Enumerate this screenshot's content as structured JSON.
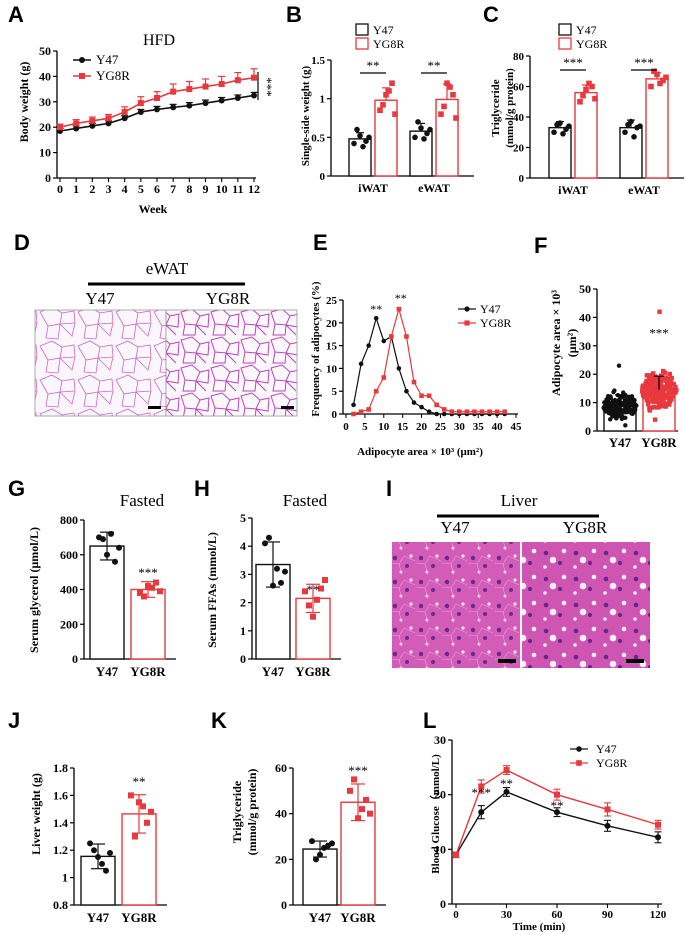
{
  "colors": {
    "y47": "#111111",
    "yg8r": "#e8393e",
    "he_pink": "#d06ad0",
    "he_bg": "#c54fb4"
  },
  "panels": {
    "A": {
      "letter": "A",
      "title": "HFD",
      "ylabel": "Body weight (g)",
      "xlabel": "Week",
      "legend": [
        "Y47",
        "YG8R"
      ],
      "sig": "***"
    },
    "B": {
      "letter": "B",
      "ylabel": "Single-side weight (g)",
      "legend": [
        "Y47",
        "YG8R"
      ],
      "sig": [
        "**",
        "**"
      ]
    },
    "C": {
      "letter": "C",
      "ylabel_line1": "Triglyceride",
      "ylabel_line2": "(mmol/g protein)",
      "legend": [
        "Y47",
        "YG8R"
      ],
      "sig": [
        "***",
        "***"
      ]
    },
    "D": {
      "letter": "D",
      "header": "eWAT",
      "left": "Y47",
      "right": "YG8R"
    },
    "E": {
      "letter": "E",
      "ylabel": "Frequency of adipocytes (%)",
      "xlabel": "Adipocyte area × 10³ (μm²)",
      "legend": [
        "Y47",
        "YG8R"
      ],
      "sig": [
        "**",
        "**"
      ]
    },
    "F": {
      "letter": "F",
      "ylabel_line1": "Adipocyte area × 10³",
      "ylabel_line2": "(μm²)",
      "sig": "***"
    },
    "G": {
      "letter": "G",
      "title": "Fasted",
      "ylabel": "Serum glycerol (μmol/L)",
      "sig": "***"
    },
    "H": {
      "letter": "H",
      "title": "Fasted",
      "ylabel": "Serum FFAs (mmol/L)",
      "sig": "**"
    },
    "I": {
      "letter": "I",
      "header": "Liver",
      "left": "Y47",
      "right": "YG8R"
    },
    "J": {
      "letter": "J",
      "ylabel": "Liver weight (g)",
      "sig": "**"
    },
    "K": {
      "letter": "K",
      "ylabel_line1": "Triglyceride",
      "ylabel_line2": "(mmol/g protein)",
      "sig": "***"
    },
    "L": {
      "letter": "L",
      "ylabel": "Blood Glucose（mmol/L)",
      "xlabel": "Time (min)",
      "legend": [
        "Y47",
        "YG8R"
      ],
      "sig": [
        "***",
        "**",
        "**"
      ]
    }
  },
  "chart_data": [
    {
      "id": "A",
      "type": "line",
      "title": "HFD",
      "xlabel": "Week",
      "ylabel": "Body weight (g)",
      "xlim": [
        0,
        12
      ],
      "ylim": [
        0,
        50
      ],
      "x": [
        0,
        1,
        2,
        3,
        4,
        5,
        6,
        7,
        8,
        9,
        10,
        11,
        12
      ],
      "xticks": [
        0,
        1,
        2,
        3,
        4,
        5,
        6,
        7,
        8,
        9,
        10,
        11,
        12
      ],
      "yticks": [
        0,
        10,
        20,
        30,
        40,
        50
      ],
      "series": [
        {
          "name": "Y47",
          "values": [
            18.5,
            19.5,
            20.5,
            21.5,
            23.5,
            26,
            27,
            27.8,
            28.5,
            29.5,
            30.5,
            31.5,
            32.5
          ],
          "err": [
            1,
            1,
            1,
            1,
            1,
            1,
            1.2,
            1.2,
            1.2,
            1.2,
            1.2,
            1.2,
            1.2
          ]
        },
        {
          "name": "YG8R",
          "values": [
            20,
            21.5,
            22.5,
            23.5,
            26,
            29.5,
            31.5,
            34,
            35,
            36,
            37,
            38.5,
            39.5
          ],
          "err": [
            1.2,
            1.5,
            1.5,
            1.5,
            2,
            2.5,
            2.5,
            3,
            3,
            3,
            3,
            3,
            3.5
          ]
        }
      ]
    },
    {
      "id": "B",
      "type": "bar",
      "ylabel": "Single-side weight (g)",
      "categories": [
        "iWAT",
        "eWAT"
      ],
      "ylim": [
        0,
        1.5
      ],
      "yticks": [
        0,
        0.5,
        1.0,
        1.5
      ],
      "series": [
        {
          "name": "Y47",
          "values": [
            0.48,
            0.58
          ],
          "err": [
            0.08,
            0.1
          ],
          "points": [
            [
              0.42,
              0.52,
              0.45,
              0.6,
              0.38,
              0.5
            ],
            [
              0.5,
              0.62,
              0.55,
              0.7,
              0.48,
              0.6
            ]
          ]
        },
        {
          "name": "YG8R",
          "values": [
            0.98,
            0.99
          ],
          "err": [
            0.16,
            0.2
          ],
          "points": [
            [
              0.85,
              1.05,
              1.2,
              0.92,
              1.1,
              0.8
            ],
            [
              0.8,
              1.2,
              1.05,
              0.9,
              1.15,
              0.75
            ]
          ]
        }
      ]
    },
    {
      "id": "C",
      "type": "bar",
      "ylabel": "Triglyceride (mmol/g protein)",
      "categories": [
        "iWAT",
        "eWAT"
      ],
      "ylim": [
        0,
        80
      ],
      "yticks": [
        0,
        20,
        40,
        60,
        80
      ],
      "series": [
        {
          "name": "Y47",
          "values": [
            33,
            33
          ],
          "err": [
            4,
            5
          ],
          "points": [
            [
              30,
              36,
              32,
              35,
              29,
              34
            ],
            [
              30,
              37,
              33,
              35,
              27,
              34
            ]
          ]
        },
        {
          "name": "YG8R",
          "values": [
            56,
            65
          ],
          "err": [
            5,
            4
          ],
          "points": [
            [
              50,
              58,
              60,
              54,
              62,
              52
            ],
            [
              60,
              68,
              64,
              70,
              62,
              66
            ]
          ]
        }
      ]
    },
    {
      "id": "E",
      "type": "line",
      "ylabel": "Frequency of adipocytes (%)",
      "xlabel": "Adipocyte area × 10³ (μm²)",
      "xlim": [
        0,
        45
      ],
      "ylim": [
        0,
        25
      ],
      "xticks": [
        0,
        5,
        10,
        15,
        20,
        25,
        30,
        35,
        40,
        45
      ],
      "yticks": [
        0,
        5,
        10,
        15,
        20,
        25
      ],
      "series": [
        {
          "name": "Y47",
          "x": [
            2,
            4,
            6,
            8,
            10,
            12,
            14,
            16,
            18,
            20,
            22,
            24,
            26,
            28,
            30,
            32,
            34,
            36,
            38,
            40,
            42
          ],
          "values": [
            2,
            11,
            15,
            21,
            16,
            17,
            10,
            5,
            2.5,
            1.5,
            0.5,
            0,
            0,
            0,
            0,
            0,
            0,
            0,
            0,
            0,
            0
          ]
        },
        {
          "name": "YG8R",
          "x": [
            2,
            4,
            6,
            8,
            10,
            12,
            14,
            16,
            18,
            20,
            22,
            24,
            26,
            28,
            30,
            32,
            34,
            36,
            38,
            40,
            42
          ],
          "values": [
            0,
            0.5,
            1,
            5,
            8,
            17,
            23,
            17,
            7,
            4,
            4,
            2,
            1,
            0.5,
            0.5,
            0.5,
            0.5,
            0.5,
            0.5,
            0.5,
            0.5
          ]
        }
      ]
    },
    {
      "id": "F",
      "type": "scatter",
      "ylabel": "Adipocyte area × 10³ (μm²)",
      "categories": [
        "Y47",
        "YG8R"
      ],
      "ylim": [
        0,
        50
      ],
      "yticks": [
        0,
        10,
        20,
        30,
        40,
        50
      ],
      "series": [
        {
          "name": "Y47",
          "mean": 9.2,
          "sd": 3.5,
          "min": 2,
          "max": 23,
          "n": 160
        },
        {
          "name": "YG8R",
          "mean": 14.5,
          "sd": 4.8,
          "min": 4,
          "max": 42,
          "n": 160
        }
      ]
    },
    {
      "id": "G",
      "type": "bar",
      "title": "Fasted",
      "ylabel": "Serum glycerol (μmol/L)",
      "categories": [
        "Y47",
        "YG8R"
      ],
      "ylim": [
        0,
        800
      ],
      "yticks": [
        0,
        200,
        400,
        600,
        800
      ],
      "values": [
        650,
        400
      ],
      "err": [
        80,
        45
      ],
      "points": [
        [
          700,
          600,
          560,
          690,
          720,
          640
        ],
        [
          380,
          420,
          440,
          360,
          410,
          390
        ]
      ]
    },
    {
      "id": "H",
      "type": "bar",
      "title": "Fasted",
      "ylabel": "Serum FFAs (mmol/L)",
      "categories": [
        "Y47",
        "YG8R"
      ],
      "ylim": [
        0,
        5
      ],
      "yticks": [
        0,
        1,
        2,
        3,
        4,
        5
      ],
      "values": [
        3.35,
        2.15
      ],
      "err": [
        0.8,
        0.5
      ],
      "points": [
        [
          4.1,
          2.6,
          2.7,
          4.3,
          3.2,
          3.1
        ],
        [
          2.4,
          1.5,
          2.5,
          1.9,
          2.1,
          2.8
        ]
      ]
    },
    {
      "id": "J",
      "type": "bar",
      "ylabel": "Liver weight (g)",
      "categories": [
        "Y47",
        "YG8R"
      ],
      "ylim": [
        0.8,
        1.8
      ],
      "yticks": [
        0.8,
        1.0,
        1.2,
        1.4,
        1.6,
        1.8
      ],
      "values": [
        1.155,
        1.465
      ],
      "err": [
        0.09,
        0.14
      ],
      "points": [
        [
          1.25,
          1.15,
          1.05,
          1.2,
          1.1,
          1.18
        ],
        [
          1.6,
          1.55,
          1.4,
          1.3,
          1.52,
          1.48
        ]
      ]
    },
    {
      "id": "K",
      "type": "bar",
      "ylabel": "Triglyceride (mmol/g protein)",
      "categories": [
        "Y47",
        "YG8R"
      ],
      "ylim": [
        0,
        60
      ],
      "yticks": [
        0,
        20,
        40,
        60
      ],
      "values": [
        24.5,
        45
      ],
      "err": [
        3.5,
        8
      ],
      "points": [
        [
          28,
          22,
          26,
          20,
          25,
          27
        ],
        [
          50,
          38,
          46,
          55,
          42,
          40
        ]
      ]
    },
    {
      "id": "L",
      "type": "line",
      "ylabel": "Blood Glucose（mmol/L)",
      "xlabel": "Time (min)",
      "xlim": [
        0,
        120
      ],
      "ylim": [
        0,
        30
      ],
      "x": [
        0,
        15,
        30,
        60,
        90,
        120
      ],
      "xticks": [
        0,
        30,
        60,
        90,
        120
      ],
      "yticks": [
        0,
        10,
        20,
        30
      ],
      "series": [
        {
          "name": "Y47",
          "values": [
            9,
            16.8,
            20.5,
            16.8,
            14.3,
            12.2
          ],
          "err": [
            0.5,
            1.2,
            0.8,
            0.8,
            1,
            1
          ]
        },
        {
          "name": "YG8R",
          "values": [
            9,
            21.5,
            24.5,
            20,
            17.3,
            14.5
          ],
          "err": [
            0.5,
            1.2,
            0.8,
            1,
            1.2,
            0.8
          ]
        }
      ]
    }
  ]
}
